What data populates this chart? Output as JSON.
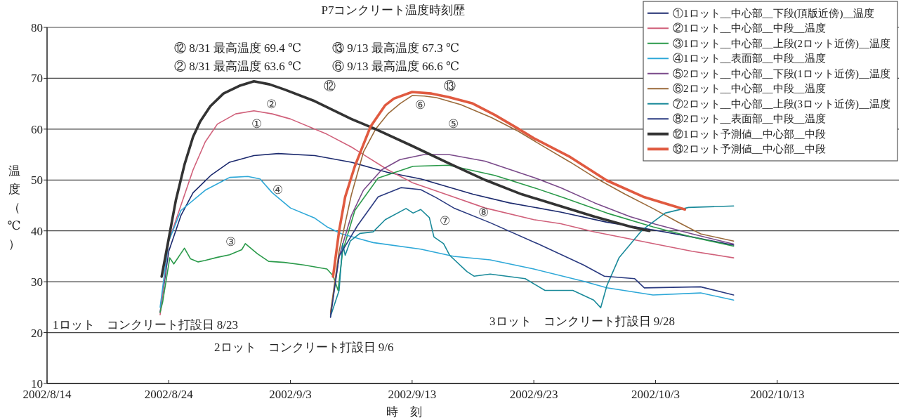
{
  "chart_data": {
    "type": "line",
    "title": "P7コンクリート温度時刻歴",
    "xlabel": "時　刻",
    "ylabel": "温度（℃）",
    "xlim": [
      "2002-08-14",
      "2002-10-23"
    ],
    "xticks": [
      {
        "value": "2002-08-14",
        "label": "2002/8/14"
      },
      {
        "value": "2002-08-24",
        "label": "2002/8/24"
      },
      {
        "value": "2002-09-03",
        "label": "2002/9/3"
      },
      {
        "value": "2002-09-13",
        "label": "2002/9/13"
      },
      {
        "value": "2002-09-23",
        "label": "2002/9/23"
      },
      {
        "value": "2002-10-03",
        "label": "2002/10/3"
      },
      {
        "value": "2002-10-13",
        "label": "2002/10/13"
      }
    ],
    "ylim": [
      10,
      80
    ],
    "yticks": [
      10,
      20,
      30,
      40,
      50,
      60,
      70,
      80
    ],
    "grid": "y",
    "legend": "top right",
    "series": [
      {
        "name": "①1ロット__中心部__下段(頂版近傍)__温度",
        "color": "#1c2a6e",
        "x": [
          "2002-08-23T07:00",
          "2002-08-24",
          "2002-08-25",
          "2002-08-26",
          "2002-08-27T12:00",
          "2002-08-29",
          "2002-08-31",
          "2002-09-02",
          "2002-09-05",
          "2002-09-08",
          "2002-09-11",
          "2002-09-13T17:00",
          "2002-09-18",
          "2002-09-21",
          "2002-09-25T05:00",
          "2002-09-29",
          "2002-10-02T19:00",
          "2002-10-06",
          "2002-10-09T10:00"
        ],
        "values": [
          24,
          36,
          43,
          47.5,
          51,
          53.5,
          54.8,
          55.2,
          54.8,
          53.5,
          51.5,
          50.2,
          47.2,
          45.5,
          43.7,
          41.7,
          40.2,
          38.8,
          37.2
        ]
      },
      {
        "name": "②1ロット__中心部__中段__温度",
        "color": "#d0607a",
        "x": [
          "2002-08-23T07:00",
          "2002-08-24",
          "2002-08-25",
          "2002-08-26",
          "2002-08-27",
          "2002-08-28",
          "2002-08-29T12:00",
          "2002-08-31",
          "2002-09-01T12:00",
          "2002-09-03",
          "2002-09-06",
          "2002-09-08",
          "2002-09-11",
          "2002-09-13",
          "2002-09-16",
          "2002-09-19",
          "2002-09-23",
          "2002-09-25T05:00",
          "2002-09-28",
          "2002-09-30T22:00",
          "2002-10-03",
          "2002-10-06",
          "2002-10-09T10:00"
        ],
        "values": [
          23.5,
          38,
          45,
          52,
          57.5,
          61,
          63,
          63.6,
          63,
          62,
          59,
          56.5,
          52,
          49.5,
          47,
          44.5,
          42.2,
          41.4,
          39.8,
          38.4,
          37.4,
          36,
          34.7
        ]
      },
      {
        "name": "③1ロット__中心部__上段(2ロット近傍)__温度",
        "color": "#2a9a4a",
        "x": [
          "2002-08-23T07:00",
          "2002-08-23T12:00",
          "2002-08-24T02:00",
          "2002-08-24T10:00",
          "2002-08-25T07:00",
          "2002-08-25T19:00",
          "2002-08-26T10:00",
          "2002-08-27",
          "2002-08-28",
          "2002-08-29",
          "2002-08-30",
          "2002-08-30T07:00",
          "2002-08-30T19:00",
          "2002-08-31T07:00",
          "2002-09-01T05:00",
          "2002-09-02T12:00",
          "2002-09-04T02:00",
          "2002-09-06",
          "2002-09-06T12:00",
          "2002-09-06T22:00",
          "2002-09-07T07:00",
          "2002-09-08T07:00",
          "2002-09-10T05:00",
          "2002-09-13T02:00",
          "2002-09-16",
          "2002-09-19T19:00",
          "2002-09-23",
          "2002-09-25T12:00",
          "2002-09-29",
          "2002-10-02T19:00",
          "2002-10-06",
          "2002-10-09T10:00"
        ],
        "values": [
          24,
          26,
          34.7,
          33.5,
          36.6,
          34.5,
          33.9,
          34.2,
          34.8,
          35.3,
          36.3,
          37.5,
          36.5,
          35.5,
          34,
          33.8,
          33.3,
          32.5,
          31.2,
          28.3,
          36,
          44,
          50.4,
          52.7,
          52.9,
          50.9,
          48.5,
          46.5,
          43.5,
          40.8,
          38.8,
          37
        ]
      },
      {
        "name": "④1ロット__表面部__中段__温度",
        "color": "#2ea8d8",
        "x": [
          "2002-08-23T07:00",
          "2002-08-24",
          "2002-08-25",
          "2002-08-27",
          "2002-08-29",
          "2002-08-30T12:00",
          "2002-08-31T12:00",
          "2002-09-01T12:00",
          "2002-09-03",
          "2002-09-05",
          "2002-09-06",
          "2002-09-07T05:00",
          "2002-09-09T19:00",
          "2002-09-13T17:00",
          "2002-09-16T10:00",
          "2002-09-19T10:00",
          "2002-09-23",
          "2002-09-27T02:00",
          "2002-09-29",
          "2002-10-02T19:00",
          "2002-10-06T17:00",
          "2002-10-09T10:00"
        ],
        "values": [
          25,
          38,
          44,
          48,
          50.5,
          50.7,
          50.2,
          47.5,
          44.5,
          42.5,
          40.8,
          39.4,
          37.7,
          36.4,
          35,
          34.3,
          32.5,
          30.1,
          28.8,
          27.4,
          27.8,
          26.4
        ]
      },
      {
        "name": "⑤2ロット__中心部__下段(1ロット近傍)__温度",
        "color": "#7a4a8a",
        "x": [
          "2002-09-06T07:00",
          "2002-09-07",
          "2002-09-08",
          "2002-09-09",
          "2002-09-10T12:00",
          "2002-09-12",
          "2002-09-14",
          "2002-09-16",
          "2002-09-19",
          "2002-09-23",
          "2002-09-25T05:00",
          "2002-09-28",
          "2002-09-30T22:00",
          "2002-10-03",
          "2002-10-06",
          "2002-10-09T10:00"
        ],
        "values": [
          23.5,
          35,
          43,
          48,
          52,
          54,
          55,
          55,
          53.7,
          50.5,
          48.5,
          45.5,
          42.8,
          41.3,
          39.4,
          37.4
        ]
      },
      {
        "name": "⑥2ロット__中心部__中段__温度",
        "color": "#9a6a3a",
        "x": [
          "2002-09-06T07:00",
          "2002-09-07",
          "2002-09-08",
          "2002-09-09",
          "2002-09-10",
          "2002-09-11",
          "2002-09-12",
          "2002-09-13",
          "2002-09-14",
          "2002-09-15",
          "2002-09-17",
          "2002-09-19T12:00",
          "2002-09-21T17:00",
          "2002-09-24",
          "2002-09-26",
          "2002-09-28",
          "2002-09-30T12:00",
          "2002-10-02T19:00",
          "2002-10-04T19:00",
          "2002-10-06T17:00",
          "2002-10-09T10:00"
        ],
        "values": [
          24,
          36,
          47,
          55.5,
          60,
          63,
          65,
          66.6,
          66.5,
          66.2,
          64.8,
          62.3,
          59.6,
          56.3,
          53.5,
          50.5,
          47.2,
          44.4,
          41.8,
          39.4,
          38
        ]
      },
      {
        "name": "⑦2ロット__中心部__上段(3ロット近傍)__温度",
        "color": "#1a8a9a",
        "x": [
          "2002-09-06T07:00",
          "2002-09-07",
          "2002-09-07T07:00",
          "2002-09-07T12:00",
          "2002-09-07T22:00",
          "2002-09-08T17:00",
          "2002-09-09T19:00",
          "2002-09-10T19:00",
          "2002-09-12T12:00",
          "2002-09-13T02:00",
          "2002-09-13T17:00",
          "2002-09-14T10:00",
          "2002-09-14T19:00",
          "2002-09-15T14:00",
          "2002-09-16T02:00",
          "2002-09-17T12:00",
          "2002-09-18T02:00",
          "2002-09-19T10:00",
          "2002-09-22T07:00",
          "2002-09-23T22:00",
          "2002-09-26T05:00",
          "2002-09-27T22:00",
          "2002-09-28T12:00",
          "2002-09-29",
          "2002-09-30",
          "2002-10-01T22:00",
          "2002-10-03T19:00",
          "2002-10-05T17:00",
          "2002-10-09T10:00"
        ],
        "values": [
          23.2,
          28.3,
          37.5,
          35.2,
          38,
          39.5,
          39.8,
          42.2,
          44.4,
          43.5,
          44.2,
          42.6,
          38.8,
          37.5,
          35.2,
          32,
          31.1,
          31.5,
          30.6,
          28.3,
          28.3,
          26.4,
          24.9,
          29.2,
          34.7,
          40.2,
          43.5,
          44.6,
          44.9
        ]
      },
      {
        "name": "⑧2ロット__表面部__中段__温度",
        "color": "#2a3a80",
        "x": [
          "2002-09-06T07:00",
          "2002-09-07",
          "2002-09-08T12:00",
          "2002-09-10T05:00",
          "2002-09-12T02:00",
          "2002-09-13T17:00",
          "2002-09-15",
          "2002-09-16T12:00",
          "2002-09-19T10:00",
          "2002-09-23T07:00",
          "2002-09-27T02:00",
          "2002-09-28T19:00",
          "2002-10-01T07:00",
          "2002-10-02T02:00",
          "2002-10-06T17:00",
          "2002-10-09T10:00"
        ],
        "values": [
          23,
          35,
          41,
          46.7,
          48.5,
          48.1,
          46.5,
          44.4,
          41.6,
          37.5,
          33.3,
          31.1,
          30.6,
          28.8,
          29,
          27.4
        ]
      },
      {
        "name": "⑫1ロット予測値__中心部__中段",
        "color": "#333333",
        "x": [
          "2002-08-23T10:00",
          "2002-08-24",
          "2002-08-24T14:00",
          "2002-08-25T07:00",
          "2002-08-26",
          "2002-08-26T14:00",
          "2002-08-27T10:00",
          "2002-08-28T12:00",
          "2002-08-29T19:00",
          "2002-08-31",
          "2002-09-01T07:00",
          "2002-09-02T12:00",
          "2002-09-05",
          "2002-09-08",
          "2002-09-10",
          "2002-09-13",
          "2002-09-16",
          "2002-09-19",
          "2002-09-22",
          "2002-09-25",
          "2002-09-28",
          "2002-10-01",
          "2002-10-02T12:00"
        ],
        "values": [
          31,
          38.5,
          46,
          53,
          58.5,
          61.5,
          64.5,
          67,
          68.5,
          69.4,
          68.8,
          67.8,
          65.5,
          62,
          60,
          56.7,
          53.3,
          50,
          47.2,
          45,
          42.8,
          40.8,
          40
        ]
      },
      {
        "name": "⑬2ロット予測値__中心部__中段",
        "color": "#e05a40",
        "x": [
          "2002-09-06T12:00",
          "2002-09-07",
          "2002-09-07T12:00",
          "2002-09-08T07:00",
          "2002-09-09",
          "2002-09-09T14:00",
          "2002-09-10T19:00",
          "2002-09-11T12:00",
          "2002-09-13",
          "2002-09-14T14:00",
          "2002-09-16",
          "2002-09-17T22:00",
          "2002-09-19T19:00",
          "2002-09-21T17:00",
          "2002-09-23",
          "2002-09-26",
          "2002-09-29",
          "2002-10-02",
          "2002-10-05T10:00"
        ],
        "values": [
          31,
          40,
          46.7,
          52.7,
          57,
          60.5,
          64.7,
          66,
          67.3,
          67,
          66.3,
          65.1,
          62.8,
          60.1,
          58.2,
          54.5,
          49.9,
          46.7,
          44.2
        ]
      }
    ],
    "annotations": [
      "⑫ 8/31 最高温度 69.4 ℃",
      "② 8/31 最高温度 63.6 ℃",
      "⑬ 9/13 最高温度 67.3 ℃",
      "⑥ 9/13 最高温度 66.6 ℃",
      "1ロット　コンクリート打設日 8/23",
      "2ロット　コンクリート打設日 9/6",
      "3ロット　コンクリート打設日 9/28",
      "①",
      "②",
      "③",
      "④",
      "⑤",
      "⑥",
      "⑦",
      "⑧",
      "⑫",
      "⑬"
    ]
  }
}
